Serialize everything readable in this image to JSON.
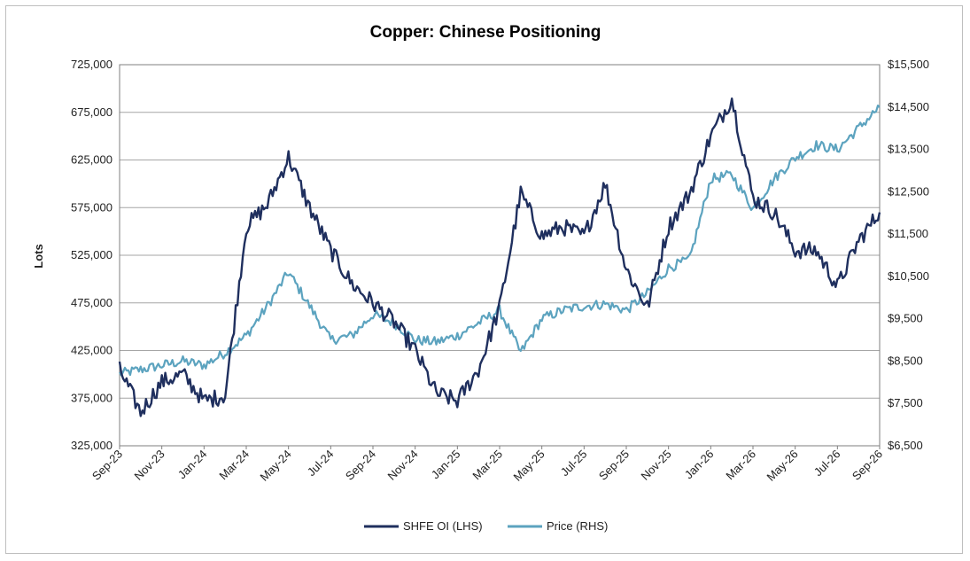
{
  "chart_data": {
    "type": "line",
    "title": "Copper: Chinese Positioning",
    "ylabel": "Lots",
    "ylim_left": [
      325000,
      725000
    ],
    "ylim_right": [
      6500,
      15500
    ],
    "grid": true,
    "legend_position": "bottom",
    "x_ticks": [
      "Sep-23",
      "Nov-23",
      "Jan-24",
      "Mar-24",
      "May-24",
      "Jul-24",
      "Sep-24",
      "Nov-24",
      "Jan-25",
      "Mar-25",
      "May-25",
      "Jul-25",
      "Sep-25",
      "Nov-25",
      "Jan-26",
      "Mar-26",
      "May-26",
      "Jul-26",
      "Sep-26"
    ],
    "y_left_ticks": [
      "325,000",
      "375,000",
      "425,000",
      "475,000",
      "525,000",
      "575,000",
      "625,000",
      "675,000",
      "725,000"
    ],
    "y_right_ticks": [
      "$6,500",
      "$7,500",
      "$8,500",
      "$9,500",
      "$10,500",
      "$11,500",
      "$12,500",
      "$13,500",
      "$14,500",
      "$15,500"
    ],
    "colors": {
      "shfe_oi": "#1f2f5e",
      "price": "#5ca3bf",
      "grid": "#a6a6a6"
    },
    "series": [
      {
        "name": "SHFE OI (LHS)",
        "axis": "left",
        "x": [
          "Sep-23",
          "Oct-23",
          "Nov-23",
          "Dec-23",
          "Jan-24",
          "Feb-24",
          "Mar-24",
          "Apr-24",
          "May-24",
          "Jun-24",
          "Jul-24",
          "Aug-24",
          "Sep-24",
          "Oct-24",
          "Nov-24",
          "Dec-24",
          "Jan-25",
          "Feb-25",
          "Mar-25",
          "Apr-25",
          "May-25",
          "Jun-25",
          "Jul-25",
          "Aug-25",
          "Sep-25",
          "Oct-25",
          "Nov-25",
          "Dec-25",
          "Jan-26",
          "Feb-26",
          "Mar-26",
          "Apr-26",
          "May-26",
          "Jun-26",
          "Jul-26",
          "Aug-26",
          "Sep-26"
        ],
        "values": [
          405000,
          360000,
          392000,
          400000,
          372000,
          378000,
          555000,
          578000,
          628000,
          575000,
          530000,
          495000,
          475000,
          455000,
          425000,
          380000,
          372000,
          405000,
          470000,
          590000,
          545000,
          555000,
          545000,
          600000,
          510000,
          470000,
          555000,
          590000,
          650000,
          690000,
          585000,
          570000,
          530000,
          530000,
          492000,
          540000,
          570000
        ]
      },
      {
        "name": "Price (RHS)",
        "axis": "right",
        "x": [
          "Sep-23",
          "Oct-23",
          "Nov-23",
          "Dec-23",
          "Jan-24",
          "Feb-24",
          "Mar-24",
          "Apr-24",
          "May-24",
          "Jun-24",
          "Jul-24",
          "Aug-24",
          "Sep-24",
          "Oct-24",
          "Nov-24",
          "Dec-24",
          "Jan-25",
          "Feb-25",
          "Mar-25",
          "Apr-25",
          "May-25",
          "Jun-25",
          "Jul-25",
          "Aug-25",
          "Sep-25",
          "Oct-25",
          "Nov-25",
          "Dec-25",
          "Jan-26",
          "Feb-26",
          "Mar-26",
          "Apr-26",
          "May-26",
          "Jun-26",
          "Jul-26",
          "Aug-26",
          "Sep-26"
        ],
        "values": [
          8200,
          8300,
          8400,
          8500,
          8400,
          8700,
          9100,
          9800,
          10600,
          9800,
          9000,
          9100,
          9600,
          9400,
          9000,
          8950,
          9100,
          9400,
          9700,
          8700,
          9500,
          9700,
          9800,
          9850,
          9700,
          10100,
          10700,
          10900,
          12800,
          12900,
          12100,
          12800,
          13300,
          13600,
          13500,
          14000,
          14500
        ]
      }
    ]
  }
}
